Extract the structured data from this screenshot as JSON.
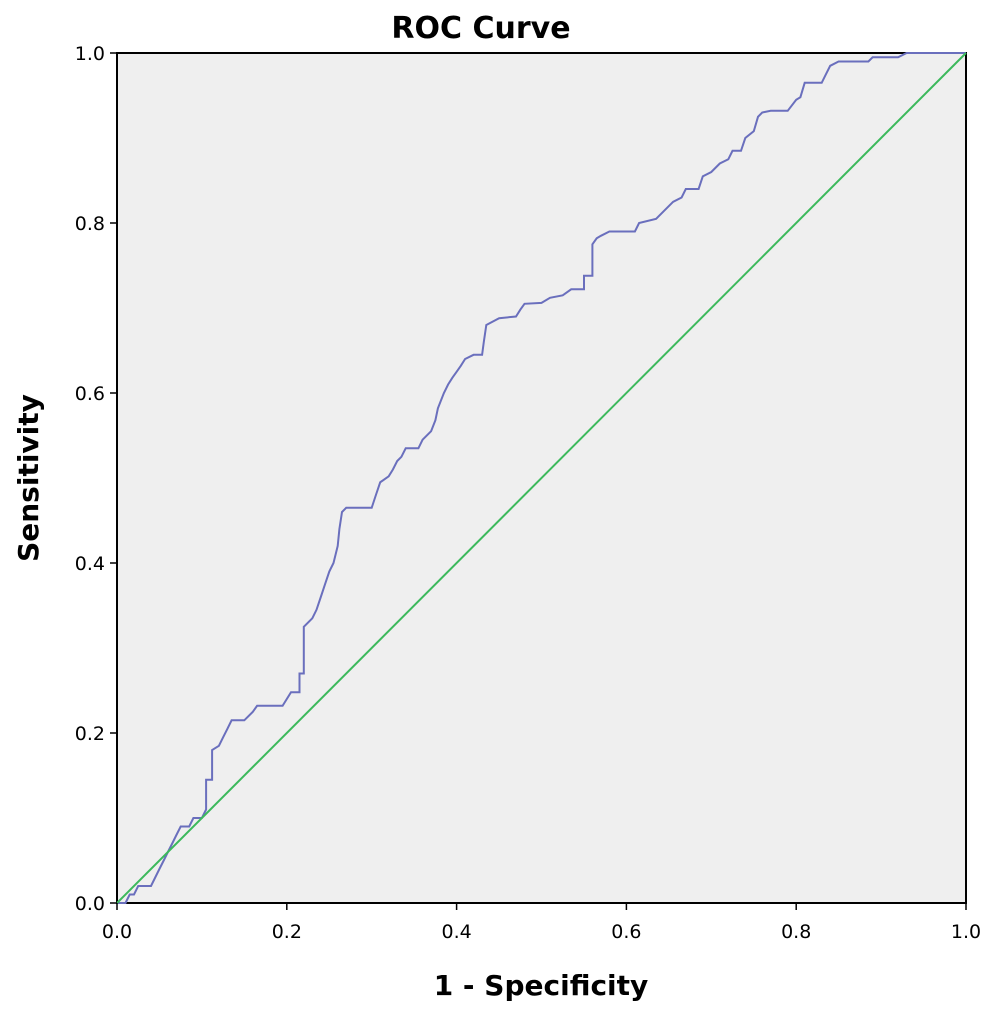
{
  "chart_data": {
    "type": "line",
    "title": "ROC Curve",
    "xlabel": "1 - Specificity",
    "ylabel": "Sensitivity",
    "xlim": [
      0,
      1
    ],
    "ylim": [
      0,
      1
    ],
    "grid": false,
    "background_color": "#efefef",
    "x_ticks": [
      "0.0",
      "0.2",
      "0.4",
      "0.6",
      "0.8",
      "1.0"
    ],
    "y_ticks": [
      "0.0",
      "0.2",
      "0.4",
      "0.6",
      "0.8",
      "1.0"
    ],
    "series": [
      {
        "color": "#6a6fbd",
        "points": [
          [
            0.0,
            0.0
          ],
          [
            0.01,
            0.0
          ],
          [
            0.015,
            0.01
          ],
          [
            0.02,
            0.01
          ],
          [
            0.025,
            0.02
          ],
          [
            0.04,
            0.02
          ],
          [
            0.045,
            0.03
          ],
          [
            0.05,
            0.04
          ],
          [
            0.055,
            0.05
          ],
          [
            0.06,
            0.06
          ],
          [
            0.065,
            0.07
          ],
          [
            0.07,
            0.08
          ],
          [
            0.075,
            0.09
          ],
          [
            0.085,
            0.09
          ],
          [
            0.09,
            0.1
          ],
          [
            0.1,
            0.1
          ],
          [
            0.105,
            0.11
          ],
          [
            0.105,
            0.145
          ],
          [
            0.112,
            0.145
          ],
          [
            0.112,
            0.18
          ],
          [
            0.12,
            0.185
          ],
          [
            0.125,
            0.195
          ],
          [
            0.13,
            0.205
          ],
          [
            0.135,
            0.215
          ],
          [
            0.15,
            0.215
          ],
          [
            0.16,
            0.225
          ],
          [
            0.165,
            0.232
          ],
          [
            0.195,
            0.232
          ],
          [
            0.2,
            0.24
          ],
          [
            0.205,
            0.248
          ],
          [
            0.215,
            0.248
          ],
          [
            0.215,
            0.27
          ],
          [
            0.22,
            0.27
          ],
          [
            0.22,
            0.325
          ],
          [
            0.23,
            0.335
          ],
          [
            0.235,
            0.345
          ],
          [
            0.24,
            0.36
          ],
          [
            0.245,
            0.375
          ],
          [
            0.25,
            0.39
          ],
          [
            0.255,
            0.4
          ],
          [
            0.26,
            0.42
          ],
          [
            0.262,
            0.44
          ],
          [
            0.265,
            0.46
          ],
          [
            0.27,
            0.465
          ],
          [
            0.3,
            0.465
          ],
          [
            0.305,
            0.48
          ],
          [
            0.31,
            0.495
          ],
          [
            0.32,
            0.502
          ],
          [
            0.325,
            0.51
          ],
          [
            0.33,
            0.52
          ],
          [
            0.335,
            0.525
          ],
          [
            0.34,
            0.535
          ],
          [
            0.355,
            0.535
          ],
          [
            0.36,
            0.545
          ],
          [
            0.37,
            0.555
          ],
          [
            0.375,
            0.568
          ],
          [
            0.378,
            0.582
          ],
          [
            0.385,
            0.6
          ],
          [
            0.39,
            0.61
          ],
          [
            0.395,
            0.618
          ],
          [
            0.4,
            0.625
          ],
          [
            0.405,
            0.632
          ],
          [
            0.41,
            0.64
          ],
          [
            0.42,
            0.645
          ],
          [
            0.43,
            0.645
          ],
          [
            0.432,
            0.66
          ],
          [
            0.435,
            0.68
          ],
          [
            0.45,
            0.688
          ],
          [
            0.47,
            0.69
          ],
          [
            0.475,
            0.698
          ],
          [
            0.48,
            0.705
          ],
          [
            0.5,
            0.706
          ],
          [
            0.51,
            0.712
          ],
          [
            0.525,
            0.715
          ],
          [
            0.535,
            0.722
          ],
          [
            0.55,
            0.722
          ],
          [
            0.55,
            0.738
          ],
          [
            0.56,
            0.738
          ],
          [
            0.56,
            0.775
          ],
          [
            0.565,
            0.782
          ],
          [
            0.57,
            0.785
          ],
          [
            0.58,
            0.79
          ],
          [
            0.61,
            0.79
          ],
          [
            0.615,
            0.8
          ],
          [
            0.635,
            0.805
          ],
          [
            0.645,
            0.815
          ],
          [
            0.655,
            0.825
          ],
          [
            0.665,
            0.83
          ],
          [
            0.67,
            0.84
          ],
          [
            0.685,
            0.84
          ],
          [
            0.69,
            0.855
          ],
          [
            0.7,
            0.86
          ],
          [
            0.71,
            0.87
          ],
          [
            0.72,
            0.875
          ],
          [
            0.725,
            0.885
          ],
          [
            0.735,
            0.885
          ],
          [
            0.74,
            0.9
          ],
          [
            0.75,
            0.908
          ],
          [
            0.755,
            0.925
          ],
          [
            0.76,
            0.93
          ],
          [
            0.77,
            0.932
          ],
          [
            0.79,
            0.932
          ],
          [
            0.8,
            0.945
          ],
          [
            0.805,
            0.948
          ],
          [
            0.81,
            0.965
          ],
          [
            0.83,
            0.965
          ],
          [
            0.835,
            0.975
          ],
          [
            0.84,
            0.985
          ],
          [
            0.85,
            0.99
          ],
          [
            0.885,
            0.99
          ],
          [
            0.89,
            0.995
          ],
          [
            0.92,
            0.995
          ],
          [
            0.93,
            1.0
          ],
          [
            0.96,
            1.0
          ],
          [
            1.0,
            1.0
          ]
        ]
      },
      {
        "color": "#3cb95c",
        "points": [
          [
            0,
            0
          ],
          [
            1,
            1
          ]
        ]
      }
    ]
  }
}
